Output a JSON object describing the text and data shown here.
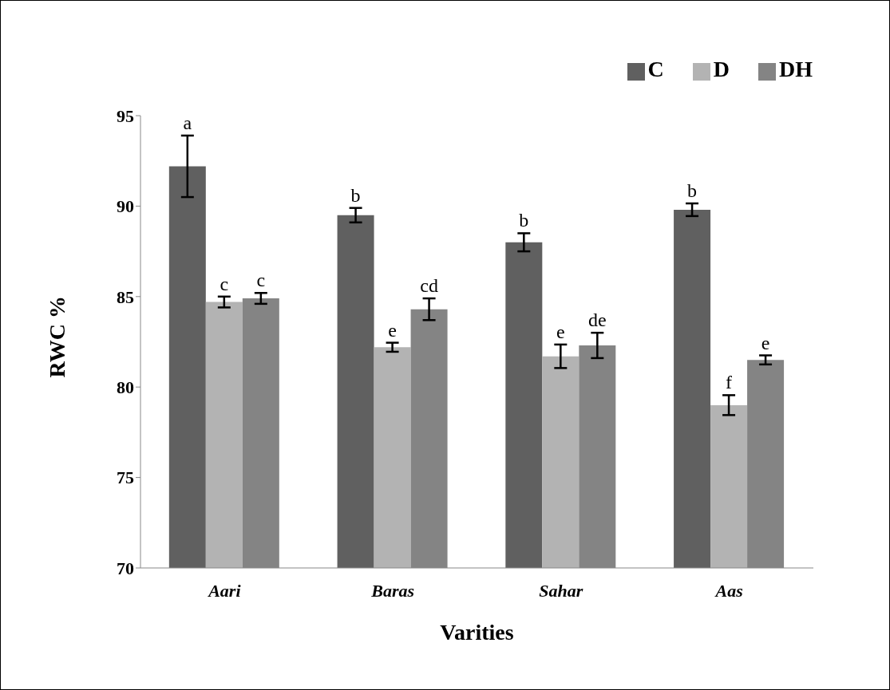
{
  "chart_data": {
    "type": "bar",
    "xlabel": "Varities",
    "ylabel": "RWC %",
    "categories": [
      "Aari",
      "Baras",
      "Sahar",
      "Aas"
    ],
    "series": [
      {
        "name": "C",
        "color": "#606060",
        "values": [
          92.2,
          89.5,
          88.0,
          89.8
        ],
        "errors": [
          1.7,
          0.4,
          0.5,
          0.35
        ],
        "value_labels": [
          "a",
          "b",
          "b",
          "b"
        ]
      },
      {
        "name": "D",
        "color": "#b3b3b3",
        "values": [
          84.7,
          82.2,
          81.7,
          79.0
        ],
        "errors": [
          0.3,
          0.25,
          0.65,
          0.55
        ],
        "value_labels": [
          "c",
          "e",
          "e",
          "f"
        ]
      },
      {
        "name": "DH",
        "color": "#848484",
        "values": [
          84.9,
          84.3,
          82.3,
          81.5
        ],
        "errors": [
          0.3,
          0.6,
          0.7,
          0.25
        ],
        "value_labels": [
          "c",
          "cd",
          "de",
          "e"
        ]
      }
    ],
    "ylim": [
      70,
      95
    ],
    "yticks": [
      70,
      75,
      80,
      85,
      90,
      95
    ],
    "grid": false,
    "legend": "top right"
  }
}
